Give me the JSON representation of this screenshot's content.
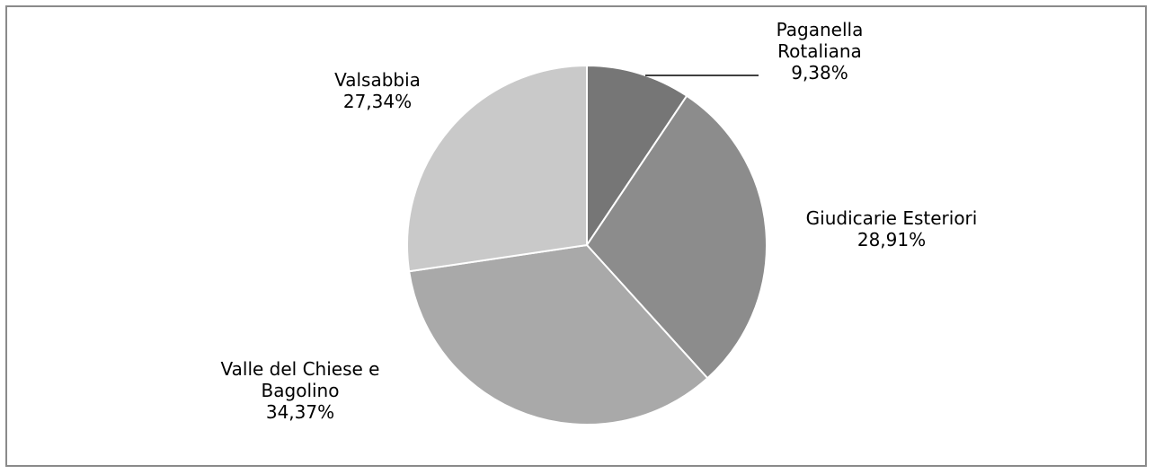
{
  "chart_data": {
    "type": "pie",
    "title": "",
    "start_angle_deg": 0,
    "direction": "clockwise",
    "slices": [
      {
        "name": "Paganella Rotaliana",
        "value": 9.38,
        "label_lines": [
          "Paganella",
          "Rotaliana",
          "9,38%"
        ],
        "color": "#767676"
      },
      {
        "name": "Giudicarie Esteriori",
        "value": 28.91,
        "label_lines": [
          "Giudicarie Esteriori",
          "28,91%"
        ],
        "color": "#8c8c8c"
      },
      {
        "name": "Valle del Chiese e Bagolino",
        "value": 34.37,
        "label_lines": [
          "Valle del Chiese e",
          "Bagolino",
          "34,37%"
        ],
        "color": "#a9a9a9"
      },
      {
        "name": "Valsabbia",
        "value": 27.34,
        "label_lines": [
          "Valsabbia",
          "27,34%"
        ],
        "color": "#c9c9c9"
      }
    ]
  },
  "colors": {
    "border": "#8a8a8a",
    "slice_separator": "#ffffff",
    "leader_line": "#000000",
    "text": "#000000"
  }
}
